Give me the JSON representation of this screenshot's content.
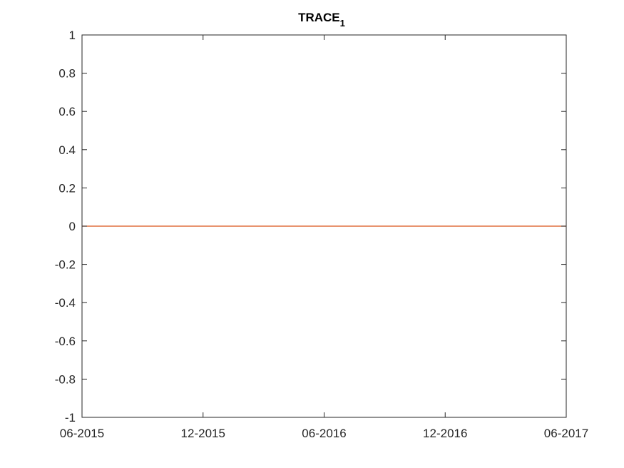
{
  "chart_data": {
    "type": "line",
    "title": "TRACE",
    "title_subscript": "1",
    "xlabel": "",
    "ylabel": "",
    "x_ticks": [
      "06-2015",
      "12-2015",
      "06-2016",
      "12-2016",
      "06-2017"
    ],
    "y_ticks": [
      "1",
      "0.8",
      "0.6",
      "0.4",
      "0.2",
      "0",
      "-0.2",
      "-0.4",
      "-0.6",
      "-0.8",
      "-1"
    ],
    "xlim": [
      "2015-06",
      "2017-06"
    ],
    "ylim": [
      -1,
      1
    ],
    "grid": false,
    "series": [
      {
        "color": "#D95319",
        "x": [
          "2015-06",
          "2017-06"
        ],
        "y": [
          0,
          0
        ]
      }
    ]
  }
}
